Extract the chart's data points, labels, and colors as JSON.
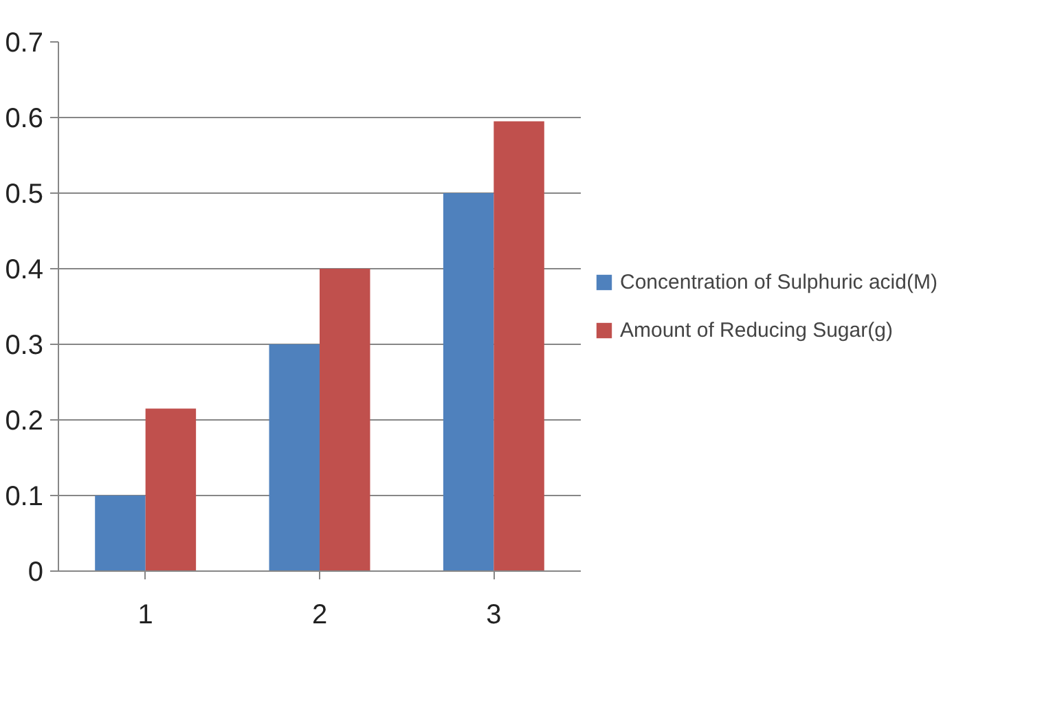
{
  "chart_data": {
    "type": "bar",
    "categories": [
      "1",
      "2",
      "3"
    ],
    "series": [
      {
        "name": "Concentration of Sulphuric acid(M)",
        "color": "#4f81bd",
        "values": [
          0.1,
          0.3,
          0.5
        ]
      },
      {
        "name": "Amount of Reducing Sugar(g)",
        "color": "#c0504d",
        "values": [
          0.215,
          0.4,
          0.595
        ]
      }
    ],
    "ylim": [
      0,
      0.7
    ],
    "yticks": [
      0,
      0.1,
      0.2,
      0.3,
      0.4,
      0.5,
      0.6,
      0.7
    ],
    "grid": "y",
    "legend": "right"
  }
}
